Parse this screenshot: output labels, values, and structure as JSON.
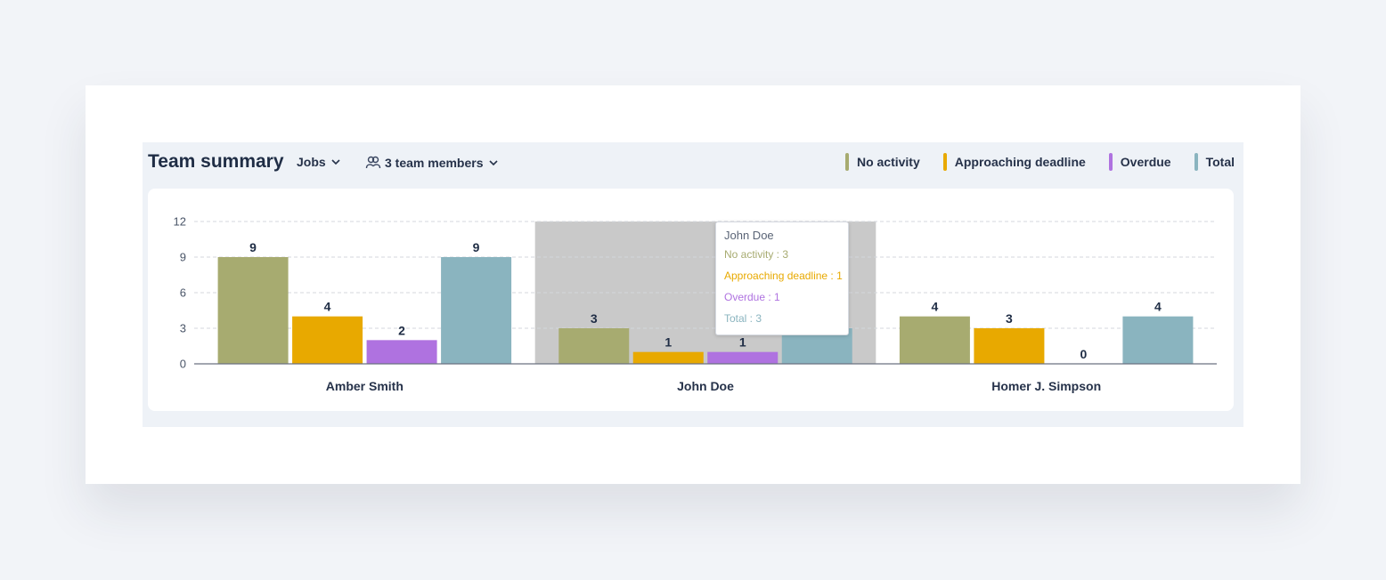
{
  "header": {
    "title": "Team summary",
    "jobs_dropdown": "Jobs",
    "members_dropdown": "3 team members"
  },
  "legend": [
    {
      "label": "No activity",
      "color": "#a7ab70"
    },
    {
      "label": "Approaching deadline",
      "color": "#e8a900"
    },
    {
      "label": "Overdue",
      "color": "#af72e0"
    },
    {
      "label": "Total",
      "color": "#8ab4bf"
    }
  ],
  "tooltip": {
    "name": "John Doe",
    "rows": [
      {
        "text": "No activity : 3",
        "color": "#a7ab70"
      },
      {
        "text": "Approaching deadline : 1",
        "color": "#e8a900"
      },
      {
        "text": "Overdue : 1",
        "color": "#af72e0"
      },
      {
        "text": "Total : 3",
        "color": "#8ab4bf"
      }
    ]
  },
  "chart_data": {
    "type": "bar",
    "categories": [
      "Amber Smith",
      "John Doe",
      "Homer J. Simpson"
    ],
    "series": [
      {
        "name": "No activity",
        "color": "#a7ab70",
        "values": [
          9,
          3,
          4
        ]
      },
      {
        "name": "Approaching deadline",
        "color": "#e8a900",
        "values": [
          4,
          1,
          3
        ]
      },
      {
        "name": "Overdue",
        "color": "#af72e0",
        "values": [
          2,
          1,
          0
        ]
      },
      {
        "name": "Total",
        "color": "#8ab4bf",
        "values": [
          9,
          3,
          4
        ]
      }
    ],
    "y_ticks": [
      0,
      3,
      6,
      9,
      12
    ],
    "ylim": [
      0,
      12
    ],
    "grid": true,
    "highlighted_category": "John Doe",
    "highlight_color": "#c9c9c9",
    "legend_position": "top-right"
  }
}
